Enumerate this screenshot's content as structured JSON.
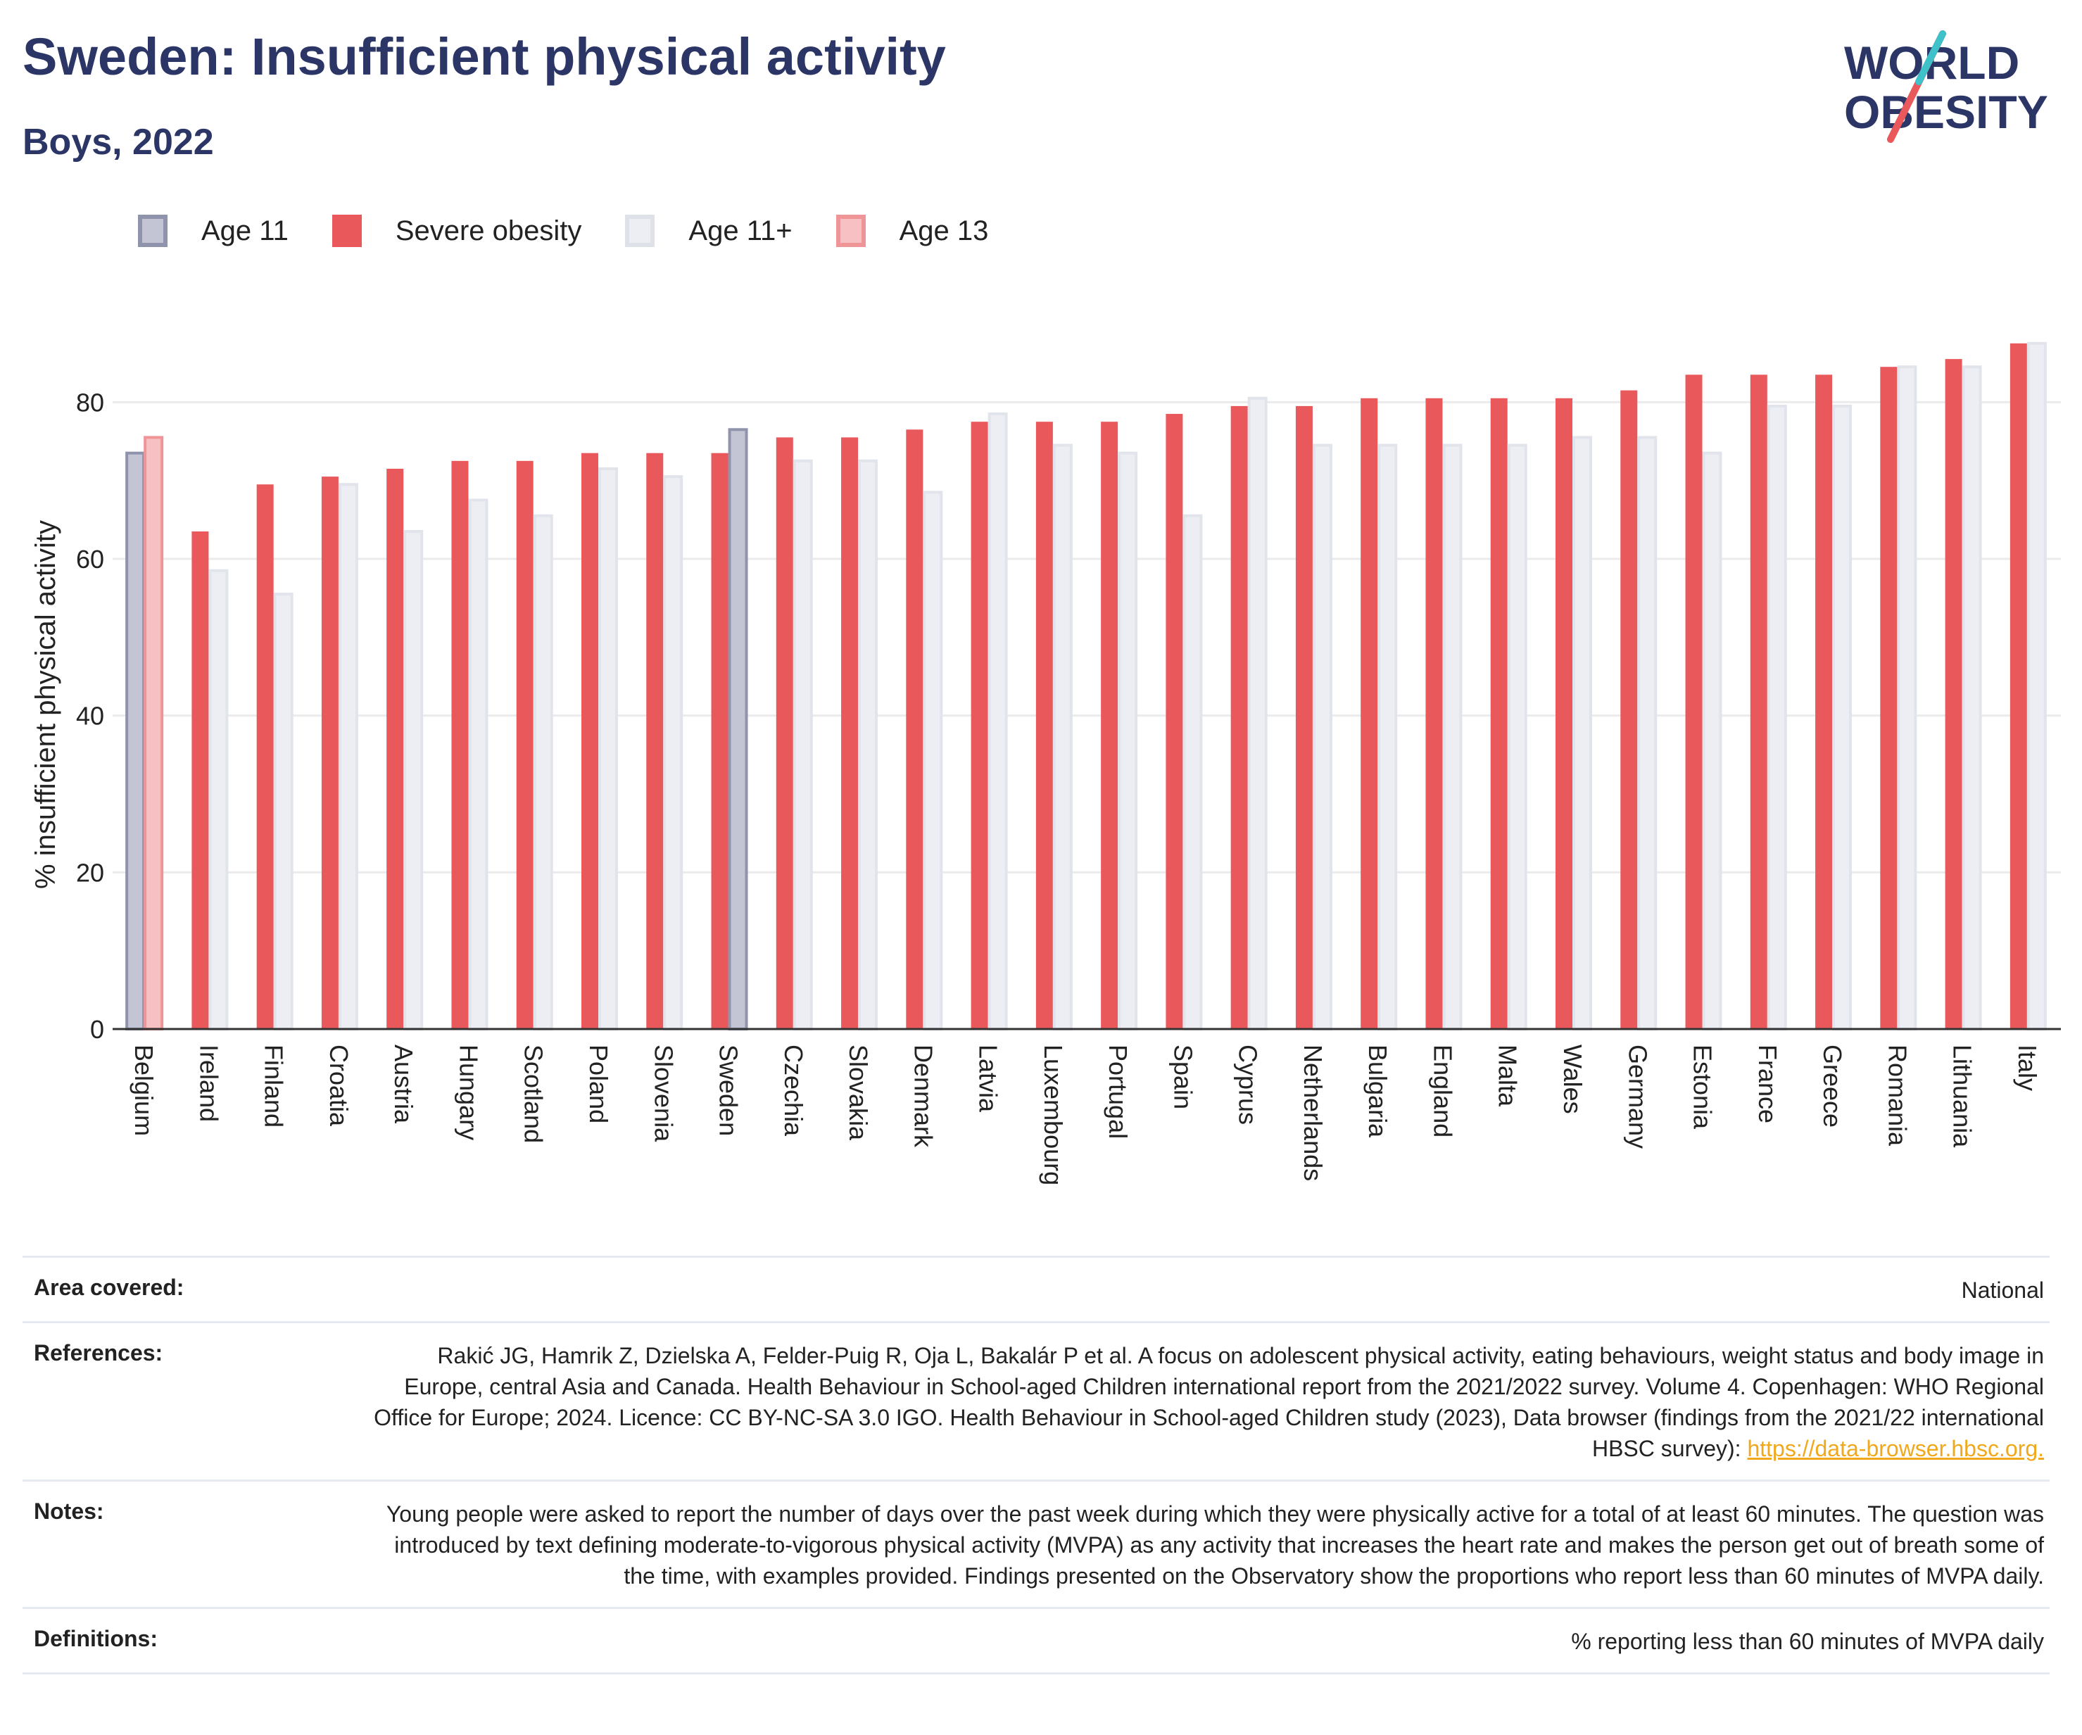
{
  "header": {
    "title": "Sweden: Insufficient physical activity",
    "subtitle": "Boys, 2022",
    "logo_line1": "WORLD",
    "logo_line2": "OBESITY"
  },
  "legend": [
    {
      "label": "Age 11",
      "fill": "#c3c5d4",
      "border": "#8f93ab"
    },
    {
      "label": "Severe obesity",
      "fill": "#e9585b",
      "border": "#e9585b"
    },
    {
      "label": "Age 11+",
      "fill": "#eceef3",
      "border": "#dfe1e9"
    },
    {
      "label": "Age 13",
      "fill": "#f7c1c3",
      "border": "#ef9598"
    }
  ],
  "chart_data": {
    "type": "bar",
    "ylabel": "% insufficient physical activity",
    "ylim": [
      0,
      90
    ],
    "yticks": [
      0,
      20,
      40,
      60,
      80
    ],
    "grid": true,
    "categories": [
      "Belgium",
      "Ireland",
      "Finland",
      "Croatia",
      "Austria",
      "Hungary",
      "Scotland",
      "Poland",
      "Slovenia",
      "Sweden",
      "Czechia",
      "Slovakia",
      "Denmark",
      "Latvia",
      "Luxembourg",
      "Portugal",
      "Spain",
      "Cyprus",
      "Netherlands",
      "Bulgaria",
      "England",
      "Malta",
      "Wales",
      "Germany",
      "Estonia",
      "France",
      "Greece",
      "Romania",
      "Lithuania",
      "Italy"
    ],
    "series": [
      {
        "name": "Severe obesity",
        "color": "#e9585b",
        "values": [
          null,
          63.5,
          69.5,
          70.5,
          71.5,
          72.5,
          72.5,
          73.5,
          73.5,
          73.5,
          75.5,
          75.5,
          76.5,
          77.5,
          77.5,
          77.5,
          78.5,
          79.5,
          79.5,
          80.5,
          80.5,
          80.5,
          80.5,
          81.5,
          83.5,
          83.5,
          83.5,
          84.5,
          85.5,
          87.5
        ]
      },
      {
        "name": "Age 11+",
        "color": "#eceef3",
        "values": [
          null,
          58.5,
          55.5,
          69.5,
          63.5,
          67.5,
          65.5,
          71.5,
          70.5,
          null,
          72.5,
          72.5,
          68.5,
          78.5,
          74.5,
          73.5,
          65.5,
          80.5,
          74.5,
          74.5,
          74.5,
          74.5,
          75.5,
          75.5,
          73.5,
          79.5,
          79.5,
          84.5,
          84.5,
          87.5
        ]
      },
      {
        "name": "Age 11",
        "color": "#c3c5d4",
        "values": [
          73.5,
          null,
          null,
          null,
          null,
          null,
          null,
          null,
          null,
          76.5,
          null,
          null,
          null,
          null,
          null,
          null,
          null,
          null,
          null,
          null,
          null,
          null,
          null,
          null,
          null,
          null,
          null,
          null,
          null,
          null
        ]
      },
      {
        "name": "Age 13",
        "color": "#f7c1c3",
        "values": [
          75.5,
          null,
          null,
          null,
          null,
          null,
          null,
          null,
          null,
          null,
          null,
          null,
          null,
          null,
          null,
          null,
          null,
          null,
          null,
          null,
          null,
          null,
          null,
          null,
          null,
          null,
          null,
          null,
          null,
          null
        ]
      }
    ]
  },
  "info": {
    "area_label": "Area covered:",
    "area_value": "National",
    "references_label": "References:",
    "references_value": "Rakić JG, Hamrik Z, Dzielska A, Felder-Puig R, Oja L, Bakalár P et al. A focus on adolescent physical activity, eating behaviours, weight status and body image in Europe, central Asia and Canada. Health Behaviour in School-aged Children international report from the 2021/2022 survey. Volume 4. Copenhagen: WHO Regional Office for Europe; 2024. Licence: CC BY-NC-SA 3.0 IGO. Health Behaviour in School-aged Children study (2023), Data browser (findings from the 2021/22 international HBSC survey): ",
    "references_link": "https://data-browser.hbsc.org.",
    "notes_label": "Notes:",
    "notes_value": "Young people were asked to report the number of days over the past week during which they were physically active for a total of at least 60 minutes. The question was introduced by text defining moderate-to-vigorous physical activity (MVPA) as any activity that increases the heart rate and makes the person get out of breath some of the time, with examples provided. Findings presented on the Observatory show the proportions who report less than 60 minutes of MVPA daily.",
    "definitions_label": "Definitions:",
    "definitions_value": "% reporting less than 60 minutes of MVPA daily"
  }
}
